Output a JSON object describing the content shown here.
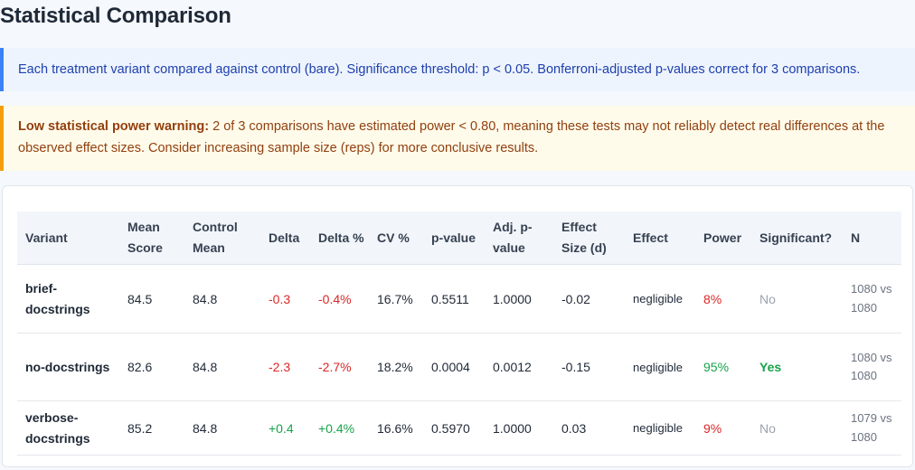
{
  "page": {
    "title": "Statistical Comparison"
  },
  "info": {
    "text": "Each treatment variant compared against control (bare). Significance threshold: p < 0.05. Bonferroni-adjusted p-values correct for 3 comparisons."
  },
  "warning": {
    "label": "Low statistical power warning:",
    "text": " 2 of 3 comparisons have estimated power < 0.80, meaning these tests may not reliably detect real differences at the observed effect sizes. Consider increasing sample size (reps) for more conclusive results."
  },
  "colors": {
    "info_accent": "#3b82f6",
    "warning_accent": "#f59e0b",
    "negative": "#dc2626",
    "positive": "#16a34a",
    "muted": "#9ca3af"
  },
  "table": {
    "headers": [
      "Variant",
      "Mean Score",
      "Control Mean",
      "Delta",
      "Delta %",
      "CV %",
      "p-value",
      "Adj. p-value",
      "Effect Size (d)",
      "Effect",
      "Power",
      "Significant?",
      "N"
    ],
    "rows": [
      {
        "variant": "brief-docstrings",
        "mean_score": "84.5",
        "control_mean": "84.8",
        "delta": "-0.3",
        "delta_pct": "-0.4%",
        "cv": "16.7%",
        "p_value": "0.5511",
        "adj_p_value": "1.0000",
        "effect_size": "-0.02",
        "effect": "negligible",
        "power": "8%",
        "significant": "No",
        "n": "1080 vs 1080"
      },
      {
        "variant": "no-docstrings",
        "mean_score": "82.6",
        "control_mean": "84.8",
        "delta": "-2.3",
        "delta_pct": "-2.7%",
        "cv": "18.2%",
        "p_value": "0.0004",
        "adj_p_value": "0.0012",
        "effect_size": "-0.15",
        "effect": "negligible",
        "power": "95%",
        "significant": "Yes",
        "n": "1080 vs 1080"
      },
      {
        "variant": "verbose-docstrings",
        "mean_score": "85.2",
        "control_mean": "84.8",
        "delta": "+0.4",
        "delta_pct": "+0.4%",
        "cv": "16.6%",
        "p_value": "0.5970",
        "adj_p_value": "1.0000",
        "effect_size": "0.03",
        "effect": "negligible",
        "power": "9%",
        "significant": "No",
        "n": "1079 vs 1080"
      }
    ]
  }
}
